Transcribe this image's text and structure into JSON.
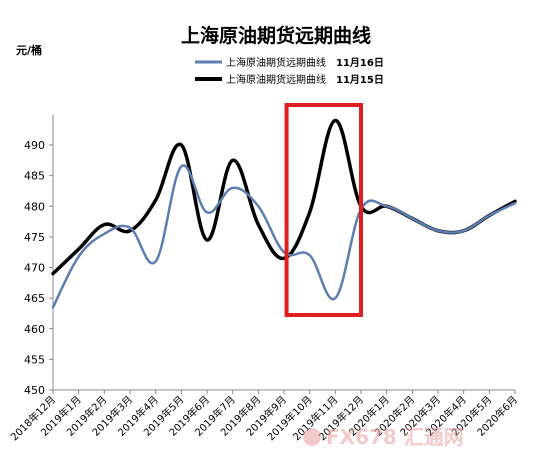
{
  "chart_data": {
    "type": "line",
    "title": "上海原油期货远期曲线",
    "ylabel": "元/桶",
    "ylim": [
      450,
      490
    ],
    "yticks": [
      450,
      455,
      460,
      465,
      470,
      475,
      480,
      485,
      490
    ],
    "categories": [
      "2018年12月",
      "2019年1月",
      "2019年2月",
      "2019年3月",
      "2019年4月",
      "2019年5月",
      "2019年6月",
      "2019年7月",
      "2019年8月",
      "2019年9月",
      "2019年10月",
      "2019年11月",
      "2019年12月",
      "2020年1月",
      "2020年2月",
      "2020年3月",
      "2020年4月",
      "2020年5月",
      "2020年6月"
    ],
    "series": [
      {
        "label": "上海原油期货远期曲线",
        "date": "11月16日",
        "color": "#5b7fb0",
        "values": [
          463.5,
          471.8,
          475.5,
          476.5,
          471.0,
          486.5,
          479.0,
          483.0,
          480.0,
          472.5,
          472.0,
          465.0,
          479.5,
          480.0,
          478.0,
          476.0,
          476.0,
          478.5,
          480.5
        ]
      },
      {
        "label": "上海原油期货远期曲线",
        "date": "11月15日",
        "color": "#000000",
        "values": [
          469.0,
          473.0,
          477.0,
          476.0,
          481.0,
          490.0,
          474.5,
          487.5,
          477.0,
          471.5,
          479.0,
          494.0,
          480.0,
          480.0,
          478.0,
          476.0,
          476.0,
          478.5,
          480.8
        ]
      }
    ],
    "highlight": {
      "from_index": 9.1,
      "to_index": 12.0,
      "color": "#e02020"
    },
    "grid": false,
    "legend": "top-center"
  },
  "watermark": {
    "text": "FX678 汇通网",
    "colors": [
      "#e8a0a0",
      "#a0b8e0"
    ]
  }
}
